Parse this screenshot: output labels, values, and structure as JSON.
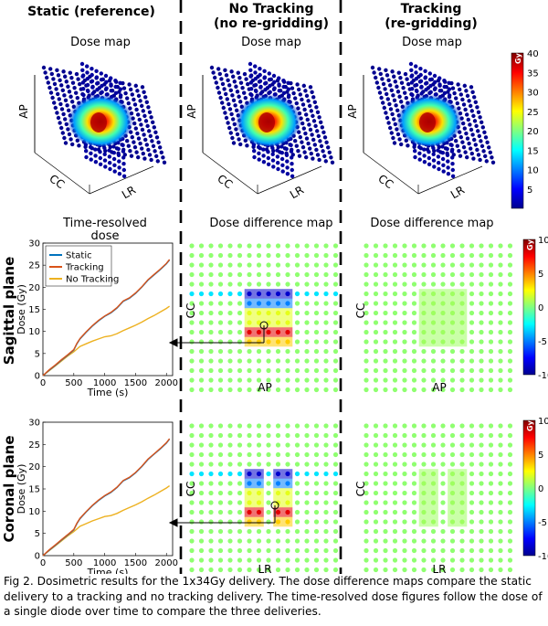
{
  "columns": {
    "col1": {
      "title": "Static (reference)"
    },
    "col2": {
      "title_line1": "No Tracking",
      "title_line2": "(no re-gridding)"
    },
    "col3": {
      "title_line1": "Tracking",
      "title_line2": "(re-gridding)"
    }
  },
  "rows": {
    "sagittal": "Sagittal plane",
    "coronal": "Coronal plane"
  },
  "dose_map": {
    "title": "Dose map",
    "axis_ap": "AP",
    "axis_cc": "CC",
    "axis_lr": "LR"
  },
  "diff_map": {
    "title": "Dose difference map",
    "axis_cc": "CC",
    "axis_ap": "AP",
    "axis_lr": "LR"
  },
  "colorbars": {
    "dose": {
      "unit": "Gy",
      "ticks": [
        "40",
        "35",
        "30",
        "25",
        "20",
        "15",
        "10",
        "5"
      ],
      "range": [
        0,
        40
      ]
    },
    "diff": {
      "unit": "Gy",
      "ticks": [
        "10",
        "5",
        "0",
        "-5",
        "-10"
      ],
      "range": [
        -10,
        10
      ]
    }
  },
  "chart_data": [
    {
      "type": "line",
      "title": "Time-resolved dose",
      "xlabel": "Time (s)",
      "ylabel": "Dose (Gy)",
      "xlim": [
        0,
        2100
      ],
      "ylim": [
        0,
        30
      ],
      "xticks": [
        "0",
        "500",
        "1000",
        "1500",
        "2000"
      ],
      "yticks": [
        "0",
        "5",
        "10",
        "15",
        "20",
        "25",
        "30"
      ],
      "legend": "top-left",
      "series": [
        {
          "name": "Static",
          "color": "#0072bd",
          "x": [
            0,
            100,
            200,
            300,
            400,
            500,
            550,
            600,
            700,
            800,
            900,
            1000,
            1100,
            1200,
            1300,
            1400,
            1500,
            1600,
            1700,
            1800,
            1900,
            2000,
            2050
          ],
          "y": [
            0,
            1.2,
            2.3,
            3.5,
            4.6,
            5.8,
            7.2,
            8.3,
            9.8,
            11.2,
            12.4,
            13.4,
            14.2,
            15.3,
            16.8,
            17.5,
            18.6,
            20.0,
            21.6,
            22.8,
            24.0,
            25.3,
            26.2
          ]
        },
        {
          "name": "Tracking",
          "color": "#d95319",
          "x": [
            0,
            100,
            200,
            300,
            400,
            500,
            550,
            600,
            700,
            800,
            900,
            1000,
            1100,
            1200,
            1300,
            1400,
            1500,
            1600,
            1700,
            1800,
            1900,
            2000,
            2050
          ],
          "y": [
            0,
            1.3,
            2.4,
            3.6,
            4.7,
            5.9,
            7.3,
            8.4,
            9.9,
            11.3,
            12.5,
            13.5,
            14.3,
            15.4,
            16.9,
            17.6,
            18.7,
            20.1,
            21.7,
            22.9,
            24.1,
            25.4,
            26.3
          ]
        },
        {
          "name": "No Tracking",
          "color": "#edb120",
          "x": [
            0,
            100,
            200,
            300,
            400,
            500,
            550,
            600,
            700,
            800,
            900,
            1000,
            1100,
            1200,
            1300,
            1400,
            1500,
            1600,
            1700,
            1800,
            1900,
            2000,
            2050
          ],
          "y": [
            0,
            1.1,
            2.2,
            3.3,
            4.4,
            5.4,
            6.0,
            6.6,
            7.2,
            7.8,
            8.3,
            8.8,
            9.0,
            9.5,
            10.2,
            10.8,
            11.4,
            12.1,
            12.9,
            13.6,
            14.4,
            15.2,
            15.7
          ]
        }
      ]
    },
    {
      "type": "line",
      "title": "",
      "xlabel": "Time (s)",
      "ylabel": "Dose (Gy)",
      "xlim": [
        0,
        2100
      ],
      "ylim": [
        0,
        30
      ],
      "xticks": [
        "0",
        "500",
        "1000",
        "1500",
        "2000"
      ],
      "yticks": [
        "0",
        "5",
        "10",
        "15",
        "20",
        "25",
        "30"
      ],
      "series": [
        {
          "name": "Static",
          "color": "#0072bd",
          "x": [
            0,
            100,
            200,
            300,
            400,
            500,
            550,
            600,
            700,
            800,
            900,
            1000,
            1100,
            1200,
            1300,
            1400,
            1500,
            1600,
            1700,
            1800,
            1900,
            2000,
            2050
          ],
          "y": [
            0,
            1.2,
            2.3,
            3.5,
            4.6,
            5.8,
            7.2,
            8.3,
            9.8,
            11.2,
            12.4,
            13.4,
            14.2,
            15.3,
            16.8,
            17.5,
            18.6,
            20.0,
            21.6,
            22.8,
            24.0,
            25.3,
            26.2
          ]
        },
        {
          "name": "Tracking",
          "color": "#d95319",
          "x": [
            0,
            100,
            200,
            300,
            400,
            500,
            550,
            600,
            700,
            800,
            900,
            1000,
            1100,
            1200,
            1300,
            1400,
            1500,
            1600,
            1700,
            1800,
            1900,
            2000,
            2050
          ],
          "y": [
            0,
            1.3,
            2.4,
            3.6,
            4.7,
            5.9,
            7.3,
            8.4,
            9.9,
            11.3,
            12.5,
            13.5,
            14.3,
            15.4,
            16.9,
            17.6,
            18.7,
            20.1,
            21.7,
            22.9,
            24.1,
            25.4,
            26.3
          ]
        },
        {
          "name": "No Tracking",
          "color": "#edb120",
          "x": [
            0,
            100,
            200,
            300,
            400,
            500,
            550,
            600,
            700,
            800,
            900,
            1000,
            1100,
            1200,
            1300,
            1400,
            1500,
            1600,
            1700,
            1800,
            1900,
            2000,
            2050
          ],
          "y": [
            0,
            1.1,
            2.2,
            3.3,
            4.4,
            5.4,
            6.0,
            6.6,
            7.2,
            7.8,
            8.3,
            8.8,
            9.0,
            9.5,
            10.2,
            10.8,
            11.4,
            12.1,
            12.9,
            13.6,
            14.4,
            15.2,
            15.7
          ]
        }
      ]
    }
  ],
  "caption": "Fig 2. Dosimetric results for the 1x34Gy delivery. The dose difference maps compare the static delivery to a tracking and no tracking delivery. The time-resolved dose figures follow the dose of a single diode over time to compare the three deliveries."
}
